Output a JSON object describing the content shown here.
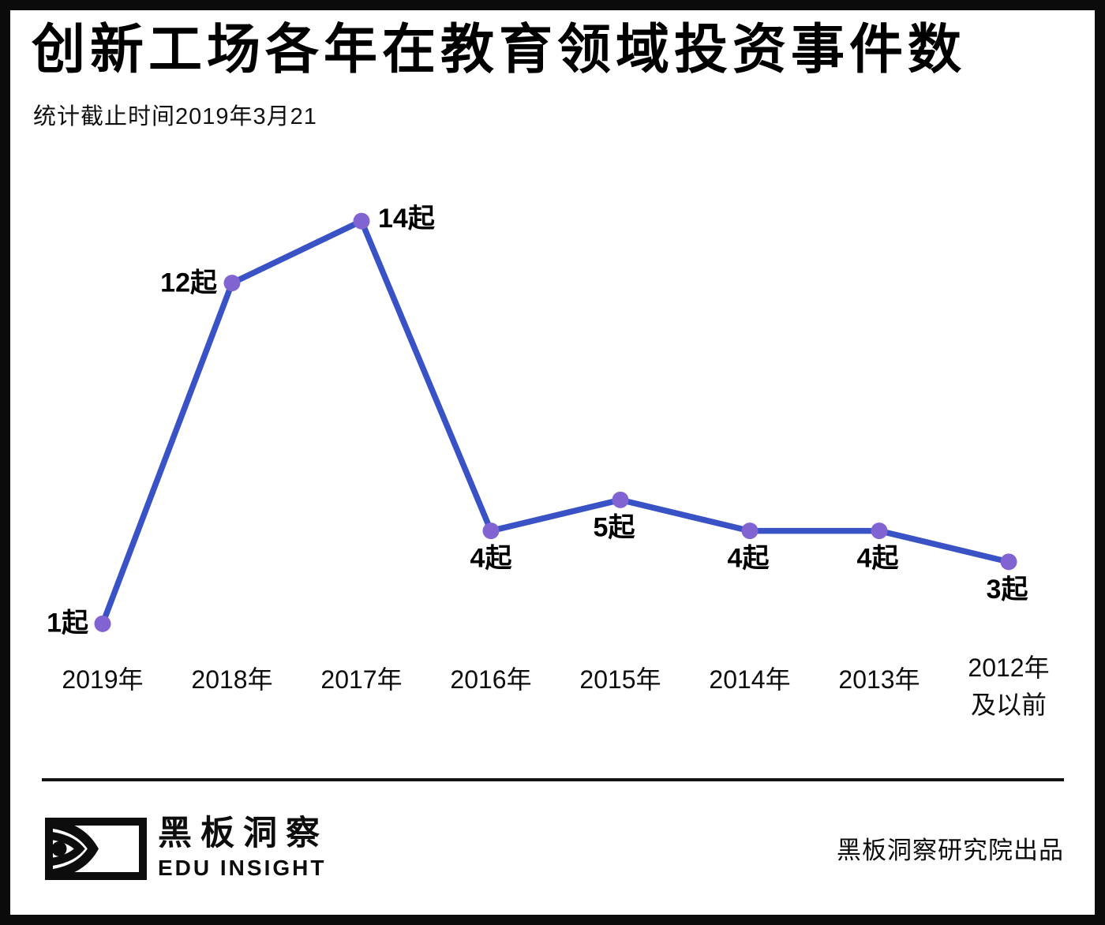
{
  "header": {
    "title": "创新工场各年在教育领域投资事件数",
    "subtitle": "统计截止时间2019年3月21"
  },
  "chart_data": {
    "type": "line",
    "title": "创新工场各年在教育领域投资事件数",
    "subtitle": "统计截止时间2019年3月21",
    "categories": [
      "2019年",
      "2018年",
      "2017年",
      "2016年",
      "2015年",
      "2014年",
      "2013年",
      "2012年\n及以前"
    ],
    "values": [
      1,
      12,
      14,
      4,
      5,
      4,
      4,
      3
    ],
    "point_labels": [
      "1起",
      "12起",
      "14起",
      "4起",
      "5起",
      "4起",
      "4起",
      "3起"
    ],
    "unit_suffix": "起",
    "ylim": [
      0,
      16
    ],
    "grid": false,
    "legend": "none",
    "line_color": "#3952C5",
    "marker_color": "#8164D2",
    "label_color": "#000000"
  },
  "footer": {
    "brand_cn": "黑板洞察",
    "brand_en": "EDU INSIGHT",
    "credit": "黑板洞察研究院出品",
    "logo_icon": "eye-icon"
  }
}
